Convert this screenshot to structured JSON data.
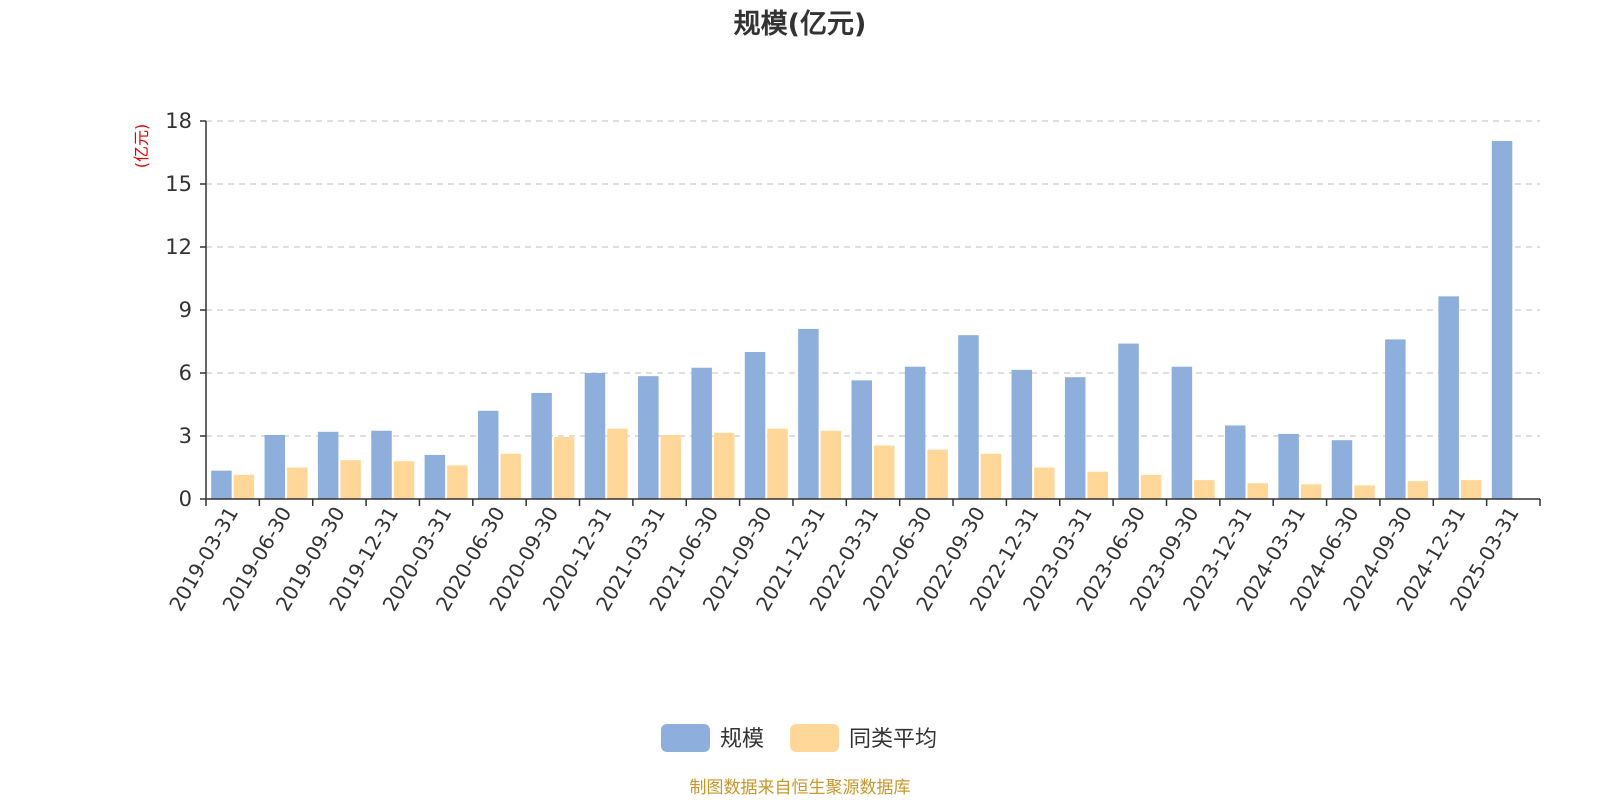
{
  "chart_data": {
    "type": "bar",
    "title": "规模(亿元)",
    "ylabel": "(亿元)",
    "ylim": [
      0,
      18
    ],
    "yticks": [
      0,
      3,
      6,
      9,
      12,
      15,
      18
    ],
    "grid": true,
    "legend_position": "bottom-center",
    "categories": [
      "2019-03-31",
      "2019-06-30",
      "2019-09-30",
      "2019-12-31",
      "2020-03-31",
      "2020-06-30",
      "2020-09-30",
      "2020-12-31",
      "2021-03-31",
      "2021-06-30",
      "2021-09-30",
      "2021-12-31",
      "2022-03-31",
      "2022-06-30",
      "2022-09-30",
      "2022-12-31",
      "2023-03-31",
      "2023-06-30",
      "2023-09-30",
      "2023-12-31",
      "2024-03-31",
      "2024-06-30",
      "2024-09-30",
      "2024-12-31",
      "2025-03-31"
    ],
    "series": [
      {
        "name": "规模",
        "color": "#8eaedb",
        "values": [
          1.35,
          3.05,
          3.2,
          3.25,
          2.1,
          4.2,
          5.05,
          6.0,
          5.85,
          6.25,
          7.0,
          8.1,
          5.65,
          6.3,
          7.8,
          6.15,
          5.8,
          7.4,
          6.3,
          3.5,
          3.1,
          2.8,
          7.6,
          9.65,
          17.05
        ]
      },
      {
        "name": "同类平均",
        "color": "#ffd899",
        "values": [
          1.15,
          1.5,
          1.85,
          1.8,
          1.6,
          2.15,
          2.95,
          3.35,
          3.05,
          3.15,
          3.35,
          3.25,
          2.55,
          2.35,
          2.15,
          1.5,
          1.3,
          1.15,
          0.9,
          0.75,
          0.7,
          0.65,
          0.85,
          0.9,
          null
        ]
      }
    ]
  },
  "footer": {
    "source": "制图数据来自恒生聚源数据库"
  }
}
